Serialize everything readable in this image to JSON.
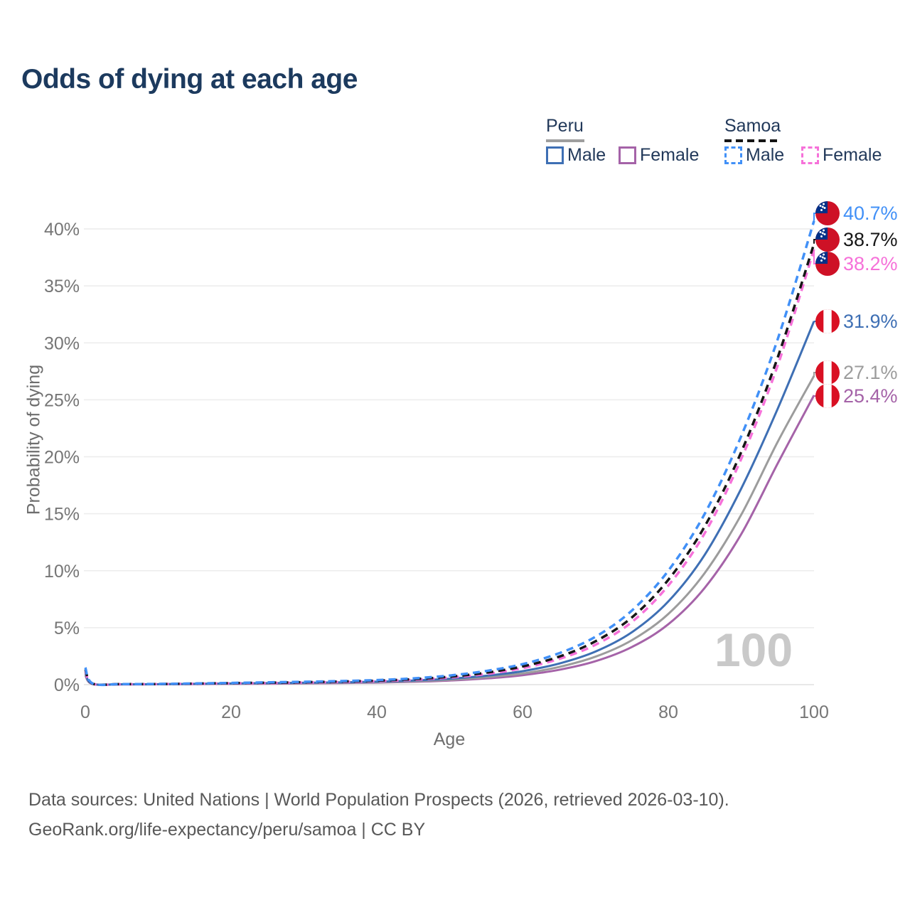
{
  "title": "Odds of dying at each age",
  "watermark": "100",
  "legend": {
    "groups": [
      {
        "name": "Peru",
        "line_style": "solid",
        "underline_color": "#9e9e9e",
        "items": [
          {
            "label": "Male",
            "color": "#3e6fb4"
          },
          {
            "label": "Female",
            "color": "#a563a8"
          }
        ]
      },
      {
        "name": "Samoa",
        "line_style": "dashed",
        "underline_color": "#141414",
        "items": [
          {
            "label": "Male",
            "color": "#4190f7"
          },
          {
            "label": "Female",
            "color": "#f671d9"
          }
        ]
      }
    ]
  },
  "footer": {
    "line1": "Data sources: United Nations | World Population Prospects (2026, retrieved 2026-03-10).",
    "line2": "GeoRank.org/life-expectancy/peru/samoa | CC BY"
  },
  "chart_data": {
    "type": "line",
    "title": "Odds of dying at each age",
    "xlabel": "Age",
    "ylabel": "Probability of dying",
    "xlim": [
      0,
      100
    ],
    "ylim": [
      0,
      42
    ],
    "grid": "horizontal",
    "legend_position": "top-right",
    "x_tick_values": [
      0,
      20,
      40,
      60,
      80,
      100
    ],
    "x_tick_labels": [
      "0",
      "20",
      "40",
      "60",
      "80",
      "100"
    ],
    "y_tick_values": [
      0,
      5,
      10,
      15,
      20,
      25,
      30,
      35,
      40
    ],
    "y_tick_labels": [
      "0%",
      "5%",
      "10%",
      "15%",
      "20%",
      "25%",
      "30%",
      "35%",
      "40%"
    ],
    "ages": [
      0,
      1,
      5,
      10,
      15,
      20,
      25,
      30,
      35,
      40,
      45,
      50,
      55,
      60,
      65,
      70,
      75,
      80,
      85,
      90,
      95,
      100
    ],
    "series": [
      {
        "name": "Samoa Male",
        "country": "Samoa",
        "sex": "Male",
        "color": "#4190f7",
        "dash": "dashed",
        "flag": "samoa",
        "end_value": 40.7,
        "end_label": "40.7%",
        "values": [
          1.5,
          0.1,
          0.05,
          0.06,
          0.1,
          0.15,
          0.2,
          0.25,
          0.31,
          0.4,
          0.55,
          0.8,
          1.2,
          1.8,
          2.75,
          4.2,
          6.5,
          10.0,
          15.0,
          21.8,
          30.3,
          40.7
        ]
      },
      {
        "name": "Samoa Both sexes",
        "country": "Samoa",
        "sex": "Both",
        "color": "#161616",
        "dash": "dashed",
        "flag": "samoa",
        "end_value": 38.7,
        "end_label": "38.7%",
        "values": [
          1.35,
          0.09,
          0.05,
          0.05,
          0.09,
          0.13,
          0.17,
          0.21,
          0.27,
          0.35,
          0.48,
          0.7,
          1.05,
          1.6,
          2.45,
          3.8,
          5.9,
          9.2,
          13.9,
          20.4,
          28.7,
          38.7
        ]
      },
      {
        "name": "Samoa Female",
        "country": "Samoa",
        "sex": "Female",
        "color": "#f671d9",
        "dash": "dashed",
        "flag": "samoa",
        "end_value": 38.2,
        "end_label": "38.2%",
        "values": [
          1.2,
          0.08,
          0.04,
          0.05,
          0.08,
          0.11,
          0.14,
          0.18,
          0.23,
          0.3,
          0.42,
          0.62,
          0.93,
          1.45,
          2.25,
          3.5,
          5.5,
          8.7,
          13.3,
          19.8,
          28.0,
          38.2
        ]
      },
      {
        "name": "Peru Male",
        "country": "Peru",
        "sex": "Male",
        "color": "#3e6fb4",
        "dash": "solid",
        "flag": "peru",
        "end_value": 31.9,
        "end_label": "31.9%",
        "values": [
          1.0,
          0.07,
          0.03,
          0.04,
          0.07,
          0.1,
          0.13,
          0.16,
          0.2,
          0.26,
          0.36,
          0.52,
          0.78,
          1.18,
          1.85,
          2.9,
          4.6,
          7.3,
          11.4,
          17.2,
          24.2,
          31.9
        ]
      },
      {
        "name": "Peru Both sexes",
        "country": "Peru",
        "sex": "Both",
        "color": "#9c9c9c",
        "dash": "solid",
        "flag": "peru",
        "end_value": 27.1,
        "end_label": "27.1%",
        "values": [
          0.9,
          0.06,
          0.03,
          0.03,
          0.06,
          0.08,
          0.11,
          0.13,
          0.17,
          0.22,
          0.3,
          0.43,
          0.65,
          0.98,
          1.55,
          2.45,
          3.9,
          6.2,
          9.8,
          14.9,
          21.3,
          27.1
        ]
      },
      {
        "name": "Peru Female",
        "country": "Peru",
        "sex": "Female",
        "color": "#a563a8",
        "dash": "solid",
        "flag": "peru",
        "end_value": 25.4,
        "end_label": "25.4%",
        "values": [
          0.8,
          0.05,
          0.02,
          0.03,
          0.05,
          0.07,
          0.09,
          0.11,
          0.14,
          0.18,
          0.25,
          0.36,
          0.54,
          0.83,
          1.3,
          2.05,
          3.3,
          5.3,
          8.5,
          13.2,
          19.4,
          25.4
        ]
      }
    ],
    "flag_colors": {
      "samoa_red": "#ce1126",
      "samoa_blue": "#003087",
      "samoa_star": "#ffffff",
      "peru_red": "#d91023",
      "peru_white": "#ffffff"
    }
  }
}
